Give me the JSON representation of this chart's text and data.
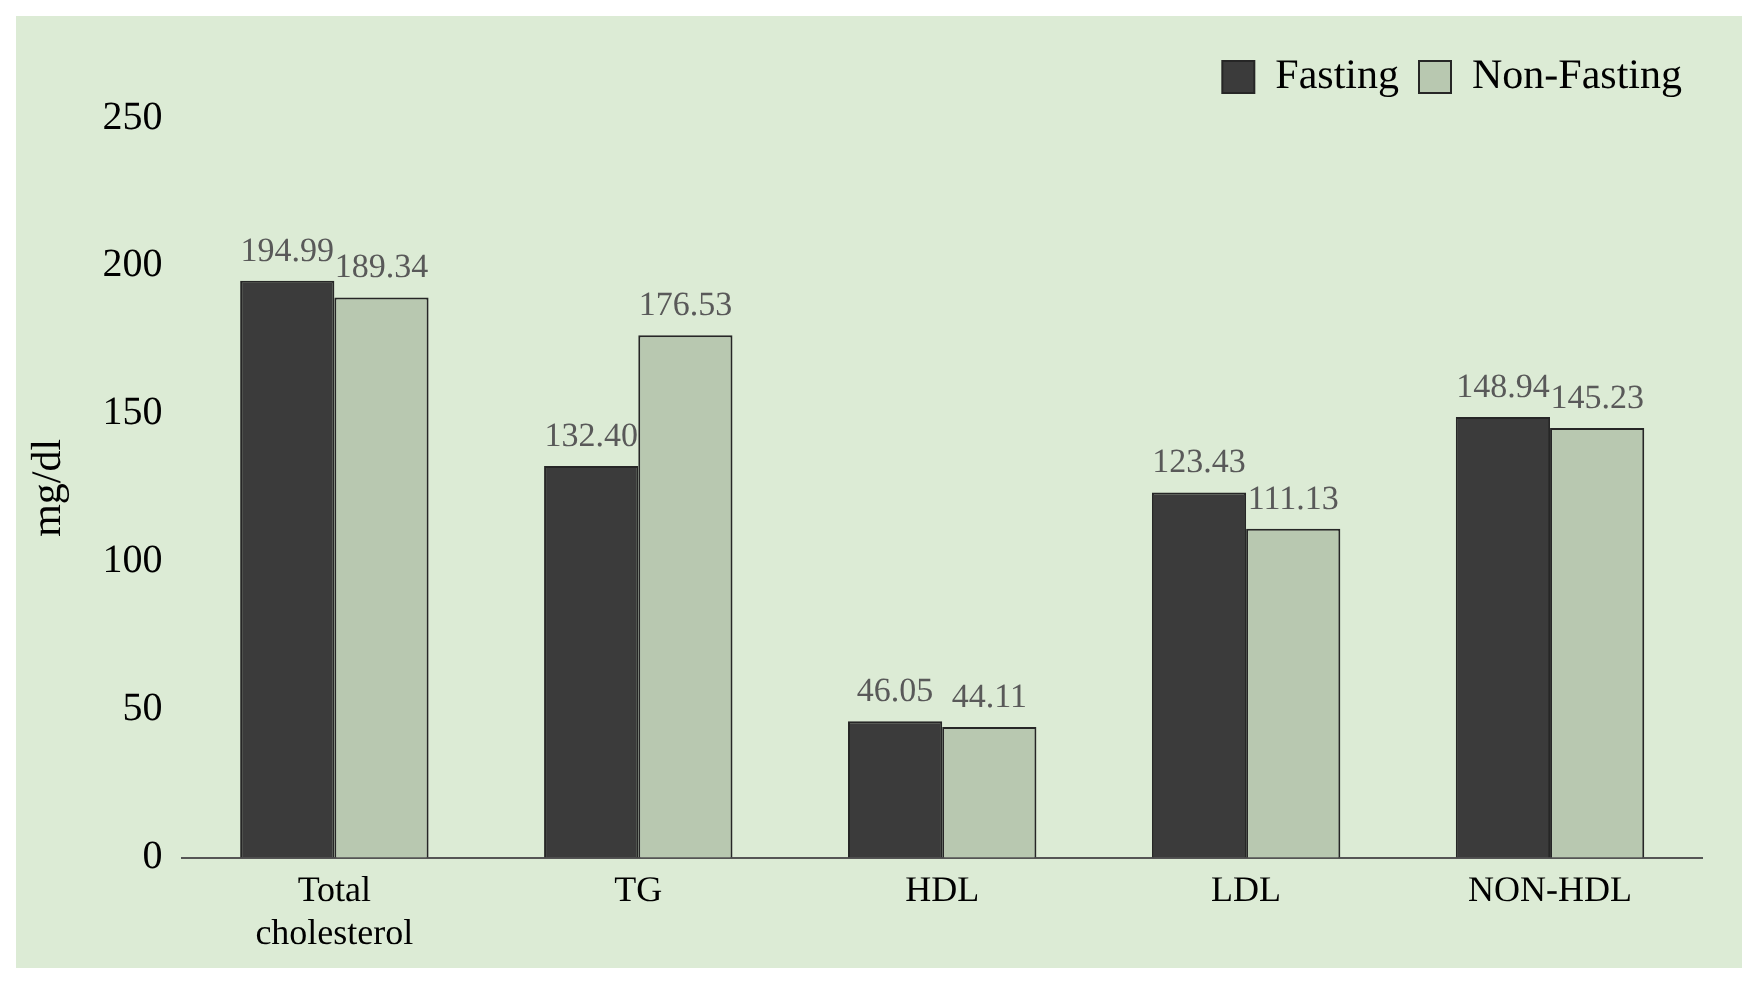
{
  "chart_data": {
    "type": "bar",
    "ylabel": "mg/dl",
    "categories": [
      "Total cholesterol",
      "TG",
      "HDL",
      "LDL",
      "NON-HDL"
    ],
    "series": [
      {
        "name": "Fasting",
        "color": "#3b3b3b",
        "values": [
          194.99,
          132.4,
          46.05,
          123.43,
          148.94
        ],
        "value_labels": [
          "194.99",
          "132.40",
          "46.05",
          "123.43",
          "148.94"
        ]
      },
      {
        "name": "Non-Fasting",
        "color": "#b8c8b0",
        "values": [
          189.34,
          176.53,
          44.11,
          111.13,
          145.23
        ],
        "value_labels": [
          "189.34",
          "176.53",
          "44.11",
          "111.13",
          "145.23"
        ]
      }
    ],
    "ylim": [
      0,
      250
    ],
    "yticks": [
      0,
      50,
      100,
      150,
      200,
      250
    ],
    "grid": false,
    "legend": "top right"
  }
}
